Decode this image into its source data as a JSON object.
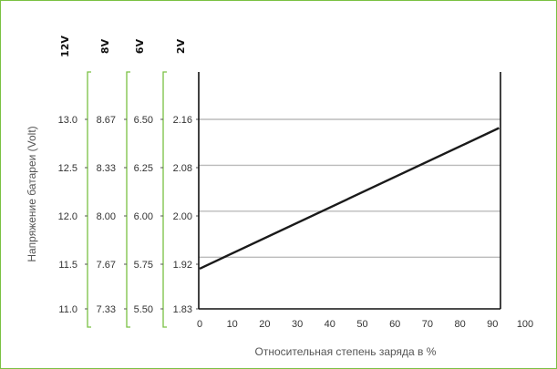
{
  "chart_data": {
    "type": "line",
    "xlabel": "Относительная степень заряда в %",
    "ylabel": "Напряжение батареи (Volt)",
    "x_ticks": [
      "0",
      "10",
      "20",
      "30",
      "40",
      "50",
      "60",
      "70",
      "80",
      "90",
      "100"
    ],
    "xlim": [
      0,
      100
    ],
    "scales": [
      {
        "header": "12V",
        "ticks": [
          "13.0",
          "12.5",
          "12.0",
          "11.5",
          "11.0"
        ]
      },
      {
        "header": "8V",
        "ticks": [
          "8.67",
          "8.33",
          "8.00",
          "7.67",
          "7.33"
        ]
      },
      {
        "header": "6V",
        "ticks": [
          "6.50",
          "6.25",
          "6.00",
          "5.75",
          "5.50"
        ]
      },
      {
        "header": "2V",
        "ticks": [
          "2.16",
          "2.08",
          "2.00",
          "1.92",
          "1.83"
        ]
      }
    ],
    "primary_ylim": [
      1.83,
      2.16
    ],
    "grid_values": [
      2.16,
      2.08,
      2.0,
      1.92
    ],
    "series": [
      {
        "x": [
          0,
          92
        ],
        "y": [
          1.9,
          2.145
        ]
      }
    ],
    "colors": {
      "line": "#1a1a1a",
      "grid": "#bbbbbb",
      "bracket": "#7ac143",
      "frame": "#7ac143"
    }
  }
}
